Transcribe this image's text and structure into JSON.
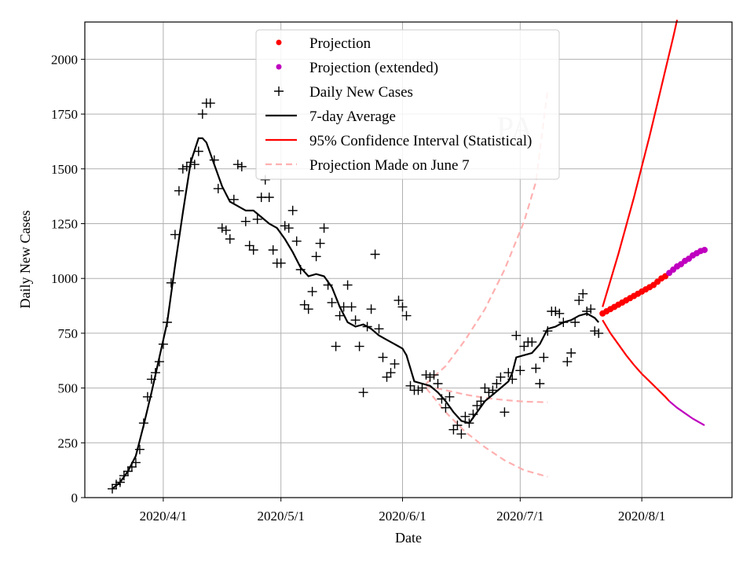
{
  "chart_data": {
    "type": "scatter",
    "title": "",
    "xlabel": "Date",
    "ylabel": "Daily New Cases",
    "watermark": "PA",
    "xlim": [
      "2020-03-12",
      "2020-08-24"
    ],
    "ylim": [
      0,
      2170
    ],
    "x_ticks": [
      {
        "date": "2020-04-01",
        "label": "2020/4/1"
      },
      {
        "date": "2020-05-01",
        "label": "2020/5/1"
      },
      {
        "date": "2020-06-01",
        "label": "2020/6/1"
      },
      {
        "date": "2020-07-01",
        "label": "2020/7/1"
      },
      {
        "date": "2020-08-01",
        "label": "2020/8/1"
      }
    ],
    "y_ticks": [
      0,
      250,
      500,
      750,
      1000,
      1250,
      1500,
      1750,
      2000
    ],
    "grid": true,
    "legend": {
      "position": "top-center",
      "entries": [
        {
          "label": "Projection",
          "marker": "dot",
          "color": "#ff0000"
        },
        {
          "label": "Projection (extended)",
          "marker": "dot",
          "color": "#bf00bf"
        },
        {
          "label": "Daily New Cases",
          "marker": "plus",
          "color": "#000000"
        },
        {
          "label": "7-day Average",
          "marker": "line",
          "color": "#000000"
        },
        {
          "label": "95% Confidence Interval (Statistical)",
          "marker": "line",
          "color": "#ff0000"
        },
        {
          "label": "Projection Made on June 7",
          "marker": "dashed",
          "color": "#ffb0b0"
        }
      ]
    },
    "daily_cases": [
      [
        "2020-03-19",
        40
      ],
      [
        "2020-03-20",
        60
      ],
      [
        "2020-03-21",
        70
      ],
      [
        "2020-03-22",
        100
      ],
      [
        "2020-03-23",
        120
      ],
      [
        "2020-03-24",
        140
      ],
      [
        "2020-03-25",
        160
      ],
      [
        "2020-03-26",
        220
      ],
      [
        "2020-03-27",
        340
      ],
      [
        "2020-03-28",
        460
      ],
      [
        "2020-03-29",
        540
      ],
      [
        "2020-03-30",
        570
      ],
      [
        "2020-03-31",
        620
      ],
      [
        "2020-04-01",
        700
      ],
      [
        "2020-04-02",
        800
      ],
      [
        "2020-04-03",
        980
      ],
      [
        "2020-04-04",
        1200
      ],
      [
        "2020-04-05",
        1400
      ],
      [
        "2020-04-06",
        1500
      ],
      [
        "2020-04-07",
        1510
      ],
      [
        "2020-04-08",
        1530
      ],
      [
        "2020-04-09",
        1520
      ],
      [
        "2020-04-10",
        1580
      ],
      [
        "2020-04-11",
        1750
      ],
      [
        "2020-04-12",
        1800
      ],
      [
        "2020-04-13",
        1800
      ],
      [
        "2020-04-14",
        1540
      ],
      [
        "2020-04-15",
        1410
      ],
      [
        "2020-04-16",
        1230
      ],
      [
        "2020-04-17",
        1220
      ],
      [
        "2020-04-18",
        1180
      ],
      [
        "2020-04-19",
        1360
      ],
      [
        "2020-04-20",
        1520
      ],
      [
        "2020-04-21",
        1510
      ],
      [
        "2020-04-22",
        1260
      ],
      [
        "2020-04-23",
        1150
      ],
      [
        "2020-04-24",
        1130
      ],
      [
        "2020-04-25",
        1270
      ],
      [
        "2020-04-26",
        1370
      ],
      [
        "2020-04-27",
        1450
      ],
      [
        "2020-04-28",
        1370
      ],
      [
        "2020-04-29",
        1130
      ],
      [
        "2020-04-30",
        1070
      ],
      [
        "2020-05-01",
        1070
      ],
      [
        "2020-05-02",
        1240
      ],
      [
        "2020-05-03",
        1230
      ],
      [
        "2020-05-04",
        1310
      ],
      [
        "2020-05-05",
        1170
      ],
      [
        "2020-05-06",
        1040
      ],
      [
        "2020-05-07",
        880
      ],
      [
        "2020-05-08",
        860
      ],
      [
        "2020-05-09",
        940
      ],
      [
        "2020-05-10",
        1100
      ],
      [
        "2020-05-11",
        1160
      ],
      [
        "2020-05-12",
        1230
      ],
      [
        "2020-05-13",
        970
      ],
      [
        "2020-05-14",
        890
      ],
      [
        "2020-05-15",
        690
      ],
      [
        "2020-05-16",
        830
      ],
      [
        "2020-05-17",
        870
      ],
      [
        "2020-05-18",
        970
      ],
      [
        "2020-05-19",
        870
      ],
      [
        "2020-05-20",
        810
      ],
      [
        "2020-05-21",
        690
      ],
      [
        "2020-05-22",
        480
      ],
      [
        "2020-05-23",
        780
      ],
      [
        "2020-05-24",
        860
      ],
      [
        "2020-05-25",
        1110
      ],
      [
        "2020-05-26",
        770
      ],
      [
        "2020-05-27",
        640
      ],
      [
        "2020-05-28",
        550
      ],
      [
        "2020-05-29",
        570
      ],
      [
        "2020-05-30",
        610
      ],
      [
        "2020-05-31",
        900
      ],
      [
        "2020-06-01",
        870
      ],
      [
        "2020-06-02",
        830
      ],
      [
        "2020-06-03",
        510
      ],
      [
        "2020-06-04",
        490
      ],
      [
        "2020-06-05",
        490
      ],
      [
        "2020-06-06",
        500
      ],
      [
        "2020-06-07",
        560
      ],
      [
        "2020-06-08",
        550
      ],
      [
        "2020-06-09",
        560
      ],
      [
        "2020-06-10",
        520
      ],
      [
        "2020-06-11",
        450
      ],
      [
        "2020-06-12",
        410
      ],
      [
        "2020-06-13",
        460
      ],
      [
        "2020-06-14",
        310
      ],
      [
        "2020-06-15",
        330
      ],
      [
        "2020-06-16",
        290
      ],
      [
        "2020-06-17",
        370
      ],
      [
        "2020-06-18",
        340
      ],
      [
        "2020-06-19",
        380
      ],
      [
        "2020-06-20",
        420
      ],
      [
        "2020-06-21",
        440
      ],
      [
        "2020-06-22",
        500
      ],
      [
        "2020-06-23",
        480
      ],
      [
        "2020-06-24",
        490
      ],
      [
        "2020-06-25",
        520
      ],
      [
        "2020-06-26",
        550
      ],
      [
        "2020-06-27",
        390
      ],
      [
        "2020-06-28",
        570
      ],
      [
        "2020-06-29",
        540
      ],
      [
        "2020-06-30",
        740
      ],
      [
        "2020-07-01",
        580
      ],
      [
        "2020-07-02",
        690
      ],
      [
        "2020-07-03",
        710
      ],
      [
        "2020-07-04",
        710
      ],
      [
        "2020-07-05",
        590
      ],
      [
        "2020-07-06",
        520
      ],
      [
        "2020-07-07",
        640
      ],
      [
        "2020-07-08",
        760
      ],
      [
        "2020-07-09",
        850
      ],
      [
        "2020-07-10",
        850
      ],
      [
        "2020-07-11",
        840
      ],
      [
        "2020-07-12",
        800
      ],
      [
        "2020-07-13",
        620
      ],
      [
        "2020-07-14",
        660
      ],
      [
        "2020-07-15",
        800
      ],
      [
        "2020-07-16",
        900
      ],
      [
        "2020-07-17",
        930
      ],
      [
        "2020-07-18",
        850
      ],
      [
        "2020-07-19",
        860
      ],
      [
        "2020-07-20",
        760
      ],
      [
        "2020-07-21",
        750
      ]
    ],
    "avg_7day": [
      [
        "2020-03-19",
        40
      ],
      [
        "2020-03-21",
        70
      ],
      [
        "2020-03-23",
        120
      ],
      [
        "2020-03-25",
        190
      ],
      [
        "2020-03-27",
        330
      ],
      [
        "2020-03-29",
        480
      ],
      [
        "2020-03-31",
        640
      ],
      [
        "2020-04-02",
        800
      ],
      [
        "2020-04-04",
        1060
      ],
      [
        "2020-04-06",
        1300
      ],
      [
        "2020-04-08",
        1530
      ],
      [
        "2020-04-10",
        1640
      ],
      [
        "2020-04-11",
        1640
      ],
      [
        "2020-04-12",
        1620
      ],
      [
        "2020-04-14",
        1520
      ],
      [
        "2020-04-16",
        1420
      ],
      [
        "2020-04-18",
        1350
      ],
      [
        "2020-04-20",
        1330
      ],
      [
        "2020-04-22",
        1310
      ],
      [
        "2020-04-24",
        1310
      ],
      [
        "2020-04-26",
        1280
      ],
      [
        "2020-04-28",
        1250
      ],
      [
        "2020-04-30",
        1230
      ],
      [
        "2020-05-02",
        1180
      ],
      [
        "2020-05-04",
        1120
      ],
      [
        "2020-05-06",
        1050
      ],
      [
        "2020-05-08",
        1010
      ],
      [
        "2020-05-10",
        1020
      ],
      [
        "2020-05-12",
        1010
      ],
      [
        "2020-05-14",
        960
      ],
      [
        "2020-05-16",
        870
      ],
      [
        "2020-05-18",
        800
      ],
      [
        "2020-05-20",
        780
      ],
      [
        "2020-05-22",
        790
      ],
      [
        "2020-05-24",
        770
      ],
      [
        "2020-05-26",
        740
      ],
      [
        "2020-05-28",
        720
      ],
      [
        "2020-05-30",
        700
      ],
      [
        "2020-06-01",
        680
      ],
      [
        "2020-06-02",
        650
      ],
      [
        "2020-06-04",
        530
      ],
      [
        "2020-06-06",
        520
      ],
      [
        "2020-06-08",
        510
      ],
      [
        "2020-06-10",
        480
      ],
      [
        "2020-06-12",
        440
      ],
      [
        "2020-06-14",
        390
      ],
      [
        "2020-06-16",
        350
      ],
      [
        "2020-06-18",
        340
      ],
      [
        "2020-06-20",
        390
      ],
      [
        "2020-06-22",
        440
      ],
      [
        "2020-06-24",
        470
      ],
      [
        "2020-06-26",
        500
      ],
      [
        "2020-06-28",
        530
      ],
      [
        "2020-06-29",
        570
      ],
      [
        "2020-06-30",
        640
      ],
      [
        "2020-07-02",
        650
      ],
      [
        "2020-07-04",
        660
      ],
      [
        "2020-07-06",
        700
      ],
      [
        "2020-07-08",
        770
      ],
      [
        "2020-07-10",
        780
      ],
      [
        "2020-07-12",
        800
      ],
      [
        "2020-07-14",
        810
      ],
      [
        "2020-07-16",
        830
      ],
      [
        "2020-07-18",
        840
      ],
      [
        "2020-07-20",
        820
      ],
      [
        "2020-07-21",
        800
      ]
    ],
    "projection": [
      [
        "2020-07-22",
        840
      ],
      [
        "2020-07-23",
        850
      ],
      [
        "2020-07-24",
        860
      ],
      [
        "2020-07-25",
        870
      ],
      [
        "2020-07-26",
        880
      ],
      [
        "2020-07-27",
        890
      ],
      [
        "2020-07-28",
        900
      ],
      [
        "2020-07-29",
        910
      ],
      [
        "2020-07-30",
        920
      ],
      [
        "2020-07-31",
        930
      ],
      [
        "2020-08-01",
        940
      ],
      [
        "2020-08-02",
        950
      ],
      [
        "2020-08-03",
        960
      ],
      [
        "2020-08-04",
        970
      ],
      [
        "2020-08-05",
        985
      ],
      [
        "2020-08-06",
        1000
      ],
      [
        "2020-08-07",
        1010
      ]
    ],
    "projection_extended": [
      [
        "2020-08-08",
        1025
      ],
      [
        "2020-08-09",
        1040
      ],
      [
        "2020-08-10",
        1055
      ],
      [
        "2020-08-11",
        1065
      ],
      [
        "2020-08-12",
        1080
      ],
      [
        "2020-08-13",
        1090
      ],
      [
        "2020-08-14",
        1105
      ],
      [
        "2020-08-15",
        1115
      ],
      [
        "2020-08-16",
        1125
      ],
      [
        "2020-08-17",
        1130
      ]
    ],
    "ci_upper": [
      [
        "2020-07-22",
        870
      ],
      [
        "2020-07-24",
        990
      ],
      [
        "2020-07-26",
        1110
      ],
      [
        "2020-07-28",
        1240
      ],
      [
        "2020-07-30",
        1370
      ],
      [
        "2020-08-01",
        1510
      ],
      [
        "2020-08-03",
        1650
      ],
      [
        "2020-08-05",
        1800
      ],
      [
        "2020-08-07",
        1950
      ],
      [
        "2020-08-09",
        2100
      ],
      [
        "2020-08-10",
        2180
      ]
    ],
    "ci_lower": [
      [
        "2020-07-22",
        810
      ],
      [
        "2020-07-24",
        750
      ],
      [
        "2020-07-26",
        700
      ],
      [
        "2020-07-28",
        650
      ],
      [
        "2020-07-30",
        605
      ],
      [
        "2020-08-01",
        565
      ],
      [
        "2020-08-03",
        530
      ],
      [
        "2020-08-05",
        495
      ],
      [
        "2020-08-07",
        460
      ],
      [
        "2020-08-08",
        440
      ]
    ],
    "ci_lower_extended": [
      [
        "2020-08-08",
        440
      ],
      [
        "2020-08-10",
        410
      ],
      [
        "2020-08-12",
        385
      ],
      [
        "2020-08-14",
        360
      ],
      [
        "2020-08-17",
        330
      ]
    ],
    "june7_projection_mid": [
      [
        "2020-06-07",
        510
      ],
      [
        "2020-06-12",
        490
      ],
      [
        "2020-06-17",
        470
      ],
      [
        "2020-06-22",
        455
      ],
      [
        "2020-06-27",
        445
      ],
      [
        "2020-07-02",
        438
      ],
      [
        "2020-07-08",
        435
      ]
    ],
    "june7_projection_upper": [
      [
        "2020-06-07",
        520
      ],
      [
        "2020-06-12",
        600
      ],
      [
        "2020-06-17",
        720
      ],
      [
        "2020-06-22",
        860
      ],
      [
        "2020-06-27",
        1040
      ],
      [
        "2020-07-02",
        1260
      ],
      [
        "2020-07-05",
        1440
      ],
      [
        "2020-07-08",
        1860
      ]
    ],
    "june7_projection_lower": [
      [
        "2020-06-07",
        500
      ],
      [
        "2020-06-12",
        390
      ],
      [
        "2020-06-17",
        300
      ],
      [
        "2020-06-22",
        230
      ],
      [
        "2020-06-27",
        170
      ],
      [
        "2020-07-02",
        125
      ],
      [
        "2020-07-08",
        95
      ]
    ]
  }
}
